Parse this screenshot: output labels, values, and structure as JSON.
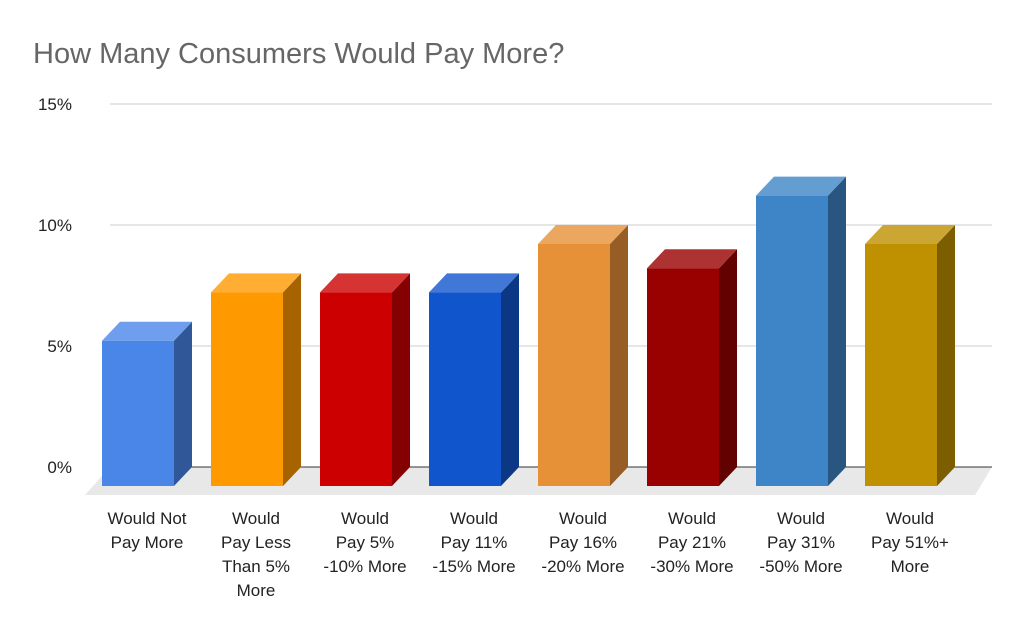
{
  "chart_data": {
    "type": "bar3d",
    "title": "How Many Consumers Would Pay More?",
    "categories": [
      "Would Not\nPay More",
      "Would\nPay Less\nThan 5%\nMore",
      "Would\nPay 5%\n-10% More",
      "Would\nPay 11%\n-15% More",
      "Would\nPay 16%\n-20% More",
      "Would\nPay 21%\n-30% More",
      "Would\nPay 31%\n-50% More",
      "Would\nPay 51%+\nMore"
    ],
    "values": [
      6,
      8,
      8,
      8,
      10,
      9,
      12,
      10
    ],
    "colors": [
      "#4a86e8",
      "#ff9900",
      "#cc0000",
      "#1155cc",
      "#e69138",
      "#990000",
      "#3d85c6",
      "#bf9000"
    ],
    "ylim": [
      0,
      15
    ],
    "yticks": [
      {
        "value": 0,
        "label": "0%"
      },
      {
        "value": 5,
        "label": "5%"
      },
      {
        "value": 10,
        "label": "10%"
      },
      {
        "value": 15,
        "label": "15%"
      }
    ],
    "grid": true
  }
}
